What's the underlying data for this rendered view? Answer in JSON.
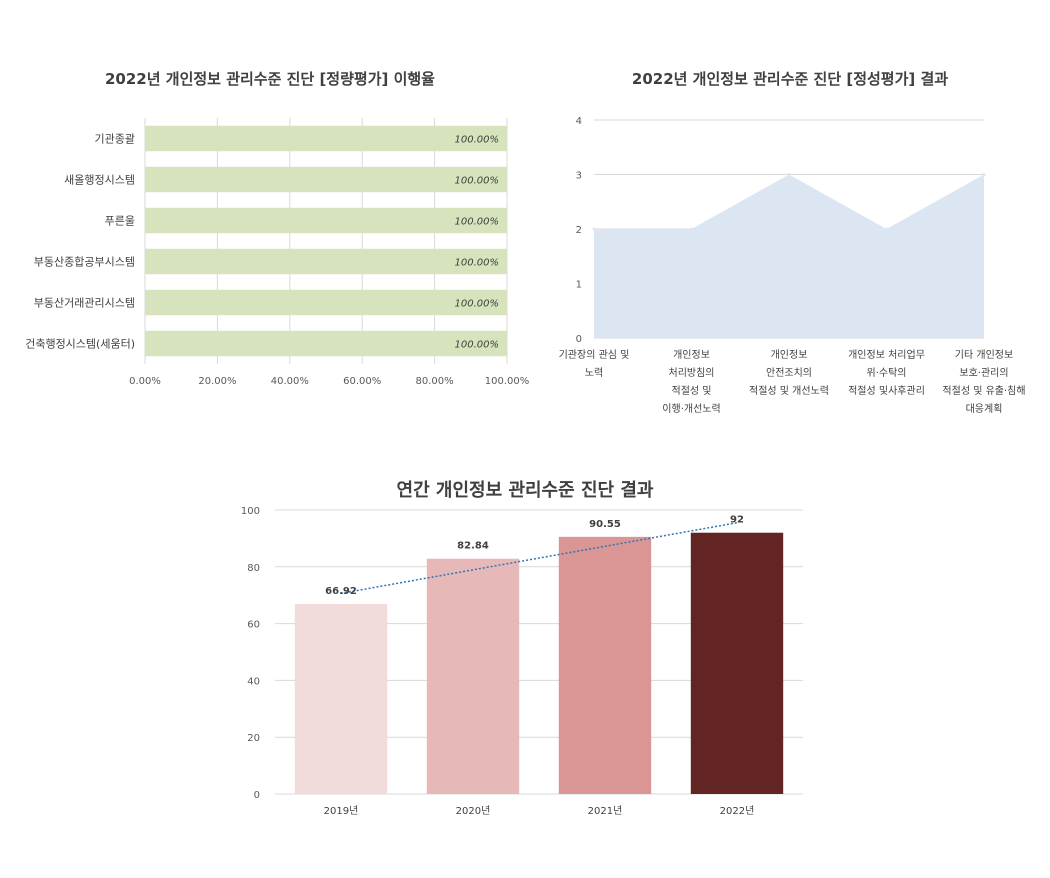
{
  "chart_data": [
    {
      "type": "bar",
      "orientation": "horizontal",
      "title": "2022년 개인정보 관리수준 진단 [정량평가] 이행율",
      "categories": [
        "기관종괄",
        "새올행정시스템",
        "푸른울",
        "부동산종합공부시스템",
        "부동산거래관리시스템",
        "건축행정시스템(세움터)"
      ],
      "values": [
        100,
        100,
        100,
        100,
        100,
        100
      ],
      "data_labels": [
        "100.00%",
        "100.00%",
        "100.00%",
        "100.00%",
        "100.00%",
        "100.00%"
      ],
      "x_ticks": [
        "0.00%",
        "20.00%",
        "40.00%",
        "60.00%",
        "80.00%",
        "100.00%"
      ],
      "xlim": [
        0,
        100
      ],
      "grid": true,
      "color": "#d6e3bc"
    },
    {
      "type": "area",
      "title": "2022년 개인정보 관리수준 진단 [정성평가] 결과",
      "categories": [
        [
          "기관장의 관심 및",
          "노력"
        ],
        [
          "개인정보",
          "처리방침의",
          "적절성 및",
          "이행·개선노력"
        ],
        [
          "개인정보",
          "안전조치의",
          "적절성 및 개선노력"
        ],
        [
          "개인정보 처리업무",
          "위·수탁의",
          "적절성 및사후관리"
        ],
        [
          "기타 개인정보",
          "보호·관리의",
          "적절성 및 유출·침해",
          "대응계획"
        ]
      ],
      "values": [
        2,
        2,
        3,
        2,
        3
      ],
      "y_ticks": [
        "0",
        "1",
        "2",
        "3",
        "4"
      ],
      "ylim": [
        0,
        4
      ],
      "grid": true,
      "color": "#dce6f2"
    },
    {
      "type": "bar",
      "title": "연간 개인정보 관리수준 진단 결과",
      "categories": [
        "2019년",
        "2020년",
        "2021년",
        "2022년"
      ],
      "values": [
        66.92,
        82.84,
        90.55,
        92
      ],
      "data_labels": [
        "66.92",
        "82.84",
        "90.55",
        "92"
      ],
      "y_ticks": [
        "0",
        "20",
        "40",
        "60",
        "80",
        "100"
      ],
      "ylim": [
        0,
        100
      ],
      "grid": true,
      "trendline": "linear dotted",
      "colors": [
        "#f2dcdb",
        "#e6b9b8",
        "#d99694",
        "#632523"
      ],
      "trend_color": "#2e75b6"
    }
  ]
}
